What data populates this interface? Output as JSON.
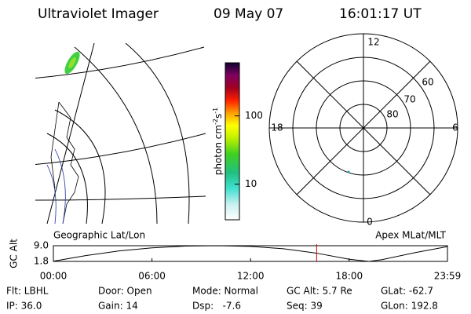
{
  "header": {
    "title": "Ultraviolet Imager",
    "date": "09 May 07",
    "time": "16:01:17 UT"
  },
  "colorbar": {
    "label": [
      "photon cm",
      "-2",
      "s",
      "-1"
    ],
    "scale": "log",
    "lim": [
      3,
      600
    ],
    "ticks": [
      10,
      100
    ]
  },
  "polar": {
    "mlt_labels": [
      "12",
      "18",
      "6",
      "0"
    ],
    "lat_labels": [
      "80",
      "70",
      "60"
    ]
  },
  "altitude_plot": {
    "type": "line",
    "label": "GC Alt",
    "left_caption": "Geographic Lat/Lon",
    "right_caption": "Apex MLat/MLT",
    "x": [
      0,
      2,
      4,
      6,
      8,
      10,
      12,
      14,
      16,
      18,
      19.2,
      20,
      22,
      23.98
    ],
    "values": [
      1.9,
      4.5,
      6.6,
      8.0,
      8.8,
      9.0,
      8.7,
      7.6,
      5.6,
      2.8,
      1.8,
      2.6,
      5.8,
      8.6
    ],
    "color": "#000000",
    "marker_x": 16.02,
    "marker_color": "#d00000",
    "xlim": [
      0,
      23.98
    ],
    "ylim": [
      1.8,
      9.0
    ],
    "xticks": [
      {
        "value": 0,
        "label": "00:00"
      },
      {
        "value": 6,
        "label": "06:00"
      },
      {
        "value": 12,
        "label": "12:00"
      },
      {
        "value": 18,
        "label": "18:00"
      },
      {
        "value": 23.98,
        "label": "23:59"
      }
    ],
    "yticks": [
      {
        "value": 9.0,
        "label": "9.0"
      },
      1.8
    ]
  },
  "footer": {
    "rows": [
      [
        "Flt: LBHL",
        "Door: Open",
        "Mode: Normal",
        "GC Alt: 5.7 Re",
        "GLat: -62.7"
      ],
      [
        "IP: 36.0",
        "Gain: 14",
        "Dsp:   -7.6",
        "Seq: 39",
        "GLon: 192.8"
      ]
    ]
  }
}
